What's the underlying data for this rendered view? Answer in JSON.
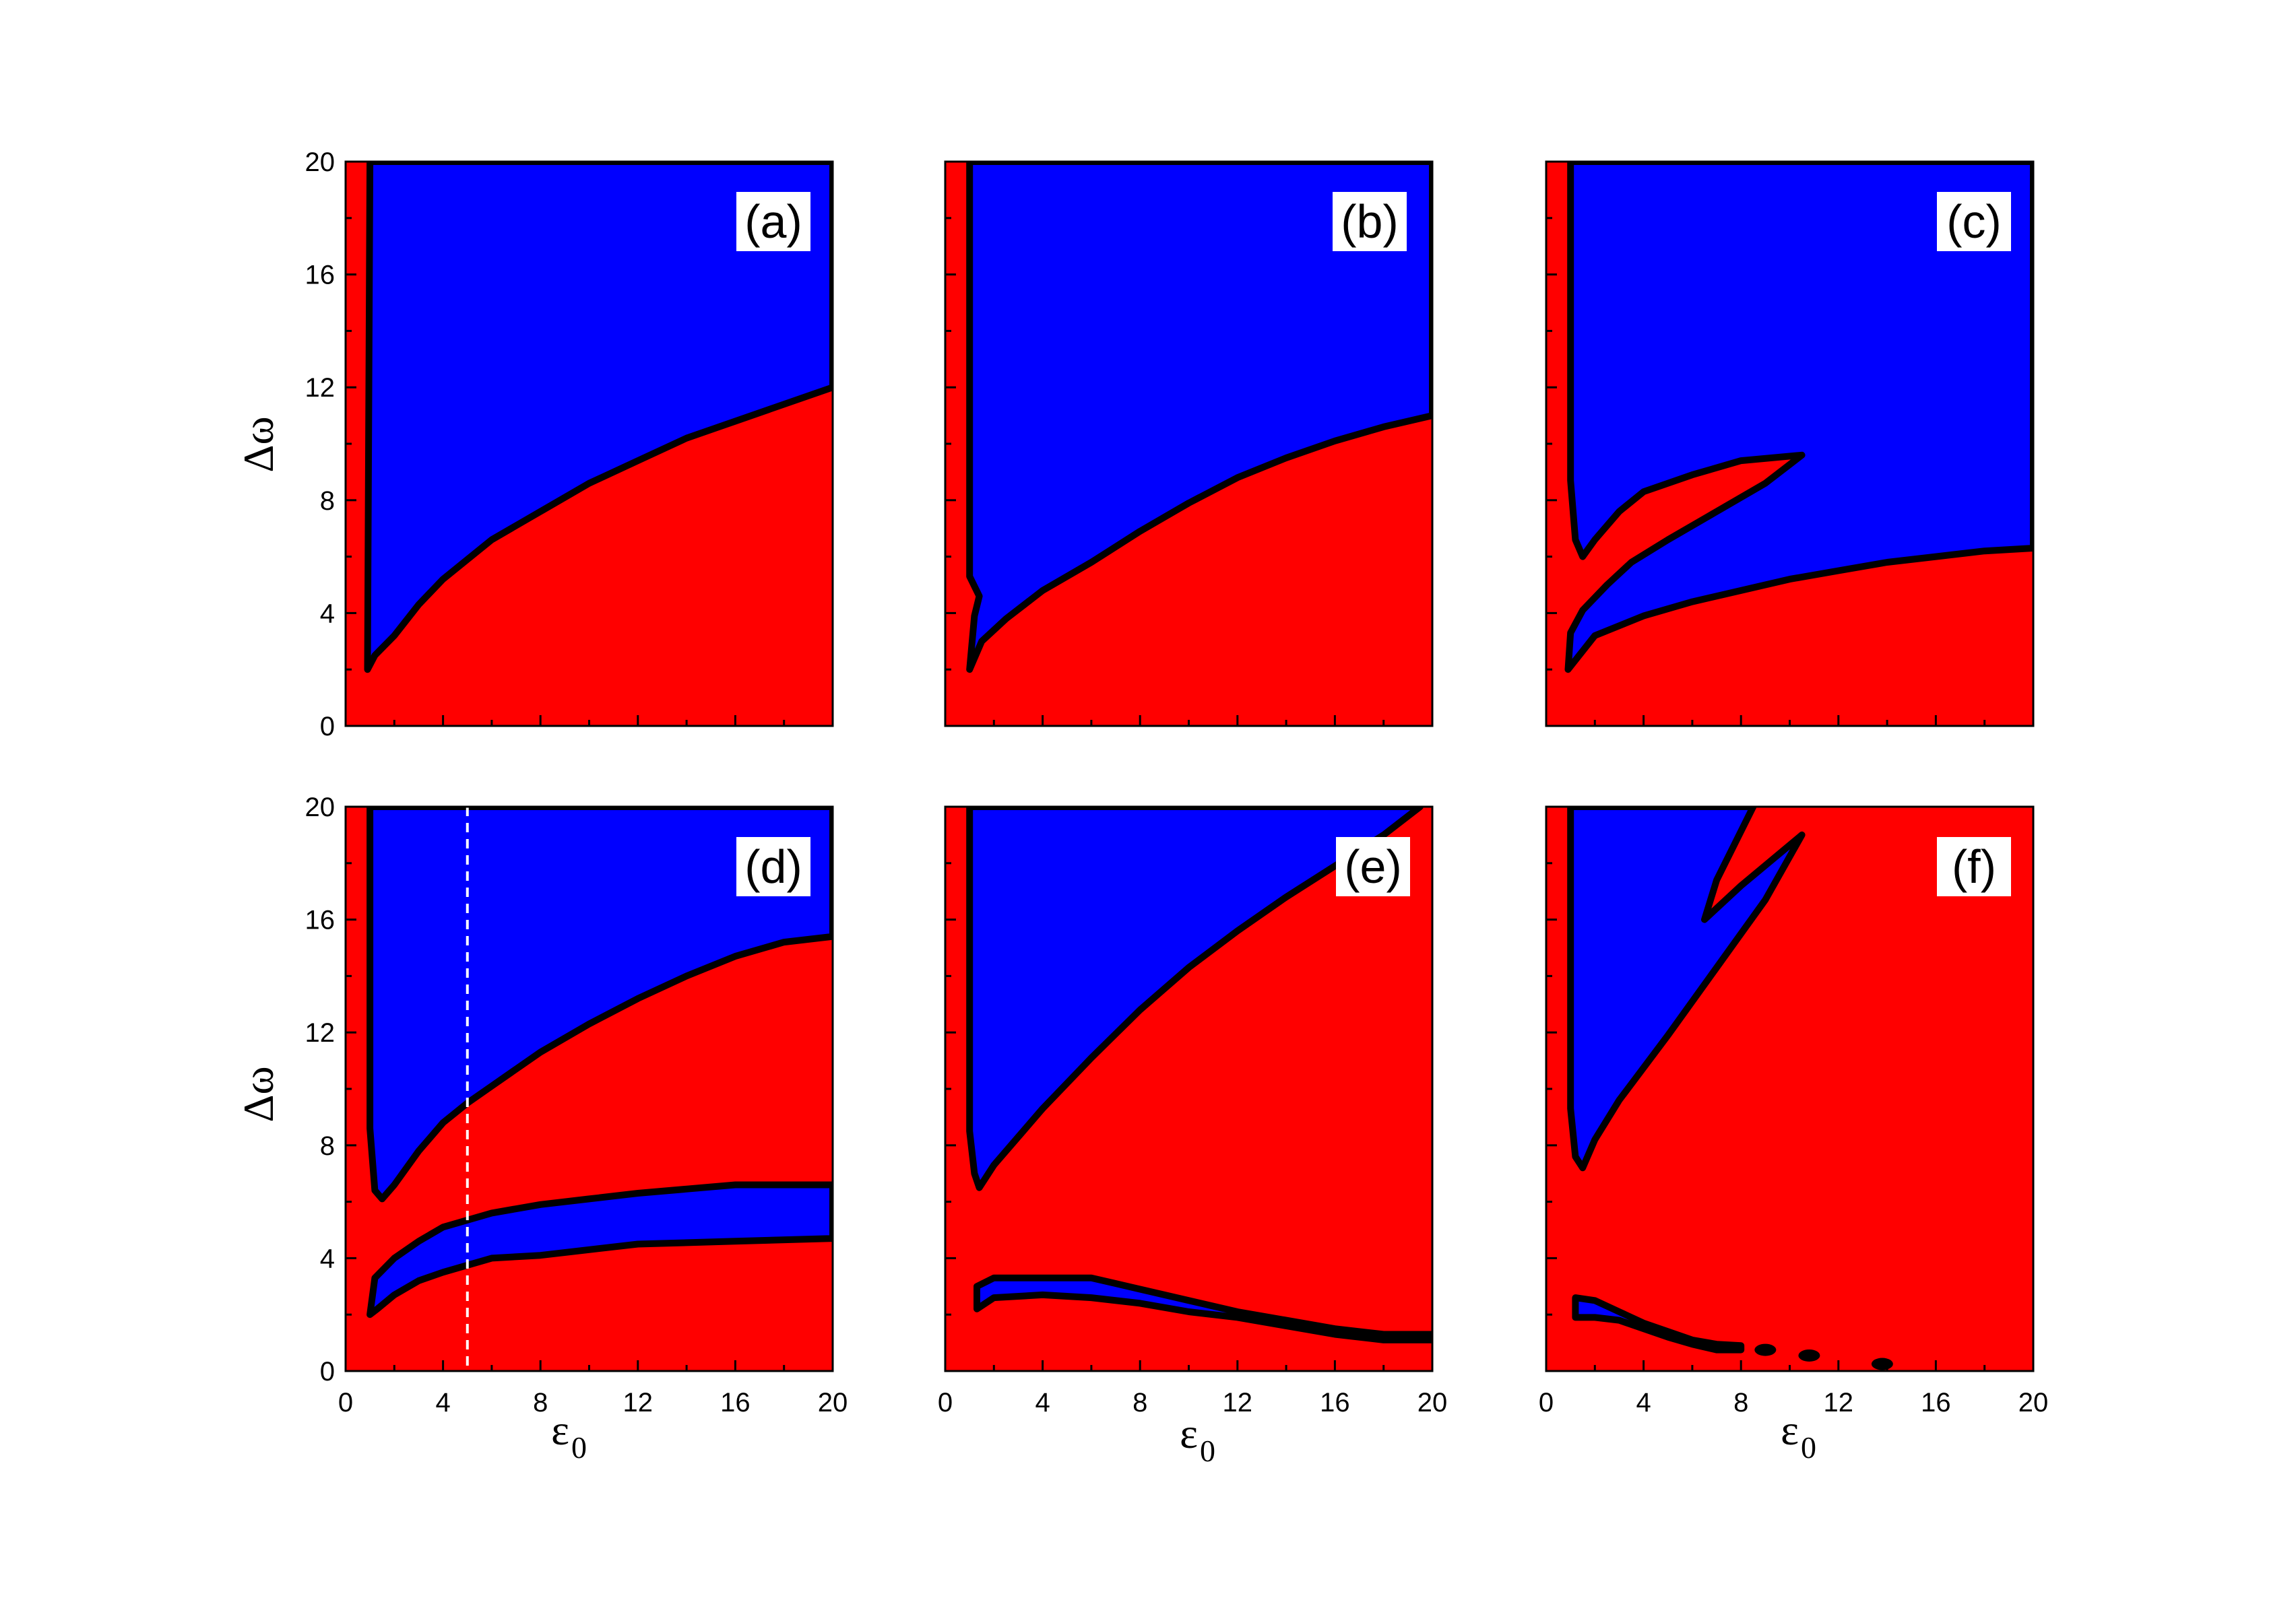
{
  "figure": {
    "colors": {
      "low_region": "#ff0000",
      "high_region": "#0000ff",
      "boundary": "#000000",
      "marker_line": "#ffffff"
    },
    "y_axis_label": "Δω",
    "x_axis_label": "ε",
    "x_axis_label_subscript": "0",
    "x_ticks": [
      "0",
      "4",
      "8",
      "12",
      "16",
      "20"
    ],
    "y_ticks": [
      "0",
      "4",
      "8",
      "12",
      "16",
      "20"
    ]
  },
  "chart_data": [
    {
      "type": "heatmap",
      "panel": "(a)",
      "xlim": [
        0,
        20
      ],
      "ylim": [
        0,
        20
      ],
      "grid": false,
      "blue_region_boundaries": [
        [
          [
            1.0,
            20
          ],
          [
            0.9,
            2.0
          ],
          [
            1.2,
            2.5
          ],
          [
            2,
            3.2
          ],
          [
            3,
            4.3
          ],
          [
            4,
            5.2
          ],
          [
            5,
            5.9
          ],
          [
            6,
            6.6
          ],
          [
            8,
            7.6
          ],
          [
            10,
            8.6
          ],
          [
            12,
            9.4
          ],
          [
            14,
            10.2
          ],
          [
            16,
            10.8
          ],
          [
            18,
            11.4
          ],
          [
            20,
            12.0
          ],
          [
            20,
            20
          ]
        ]
      ]
    },
    {
      "type": "heatmap",
      "panel": "(b)",
      "xlim": [
        0,
        20
      ],
      "ylim": [
        0,
        20
      ],
      "grid": false,
      "blue_region_boundaries": [
        [
          [
            1.0,
            20
          ],
          [
            1.0,
            5.3
          ],
          [
            1.4,
            4.6
          ],
          [
            1.2,
            3.9
          ],
          [
            1.0,
            2.0
          ],
          [
            1.5,
            3.0
          ],
          [
            2.5,
            3.8
          ],
          [
            4,
            4.8
          ],
          [
            6,
            5.8
          ],
          [
            8,
            6.9
          ],
          [
            10,
            7.9
          ],
          [
            12,
            8.8
          ],
          [
            14,
            9.5
          ],
          [
            16,
            10.1
          ],
          [
            18,
            10.6
          ],
          [
            20,
            11.0
          ],
          [
            20,
            20
          ]
        ]
      ]
    },
    {
      "type": "heatmap",
      "panel": "(c)",
      "xlim": [
        0,
        20
      ],
      "ylim": [
        0,
        20
      ],
      "grid": false,
      "blue_region_boundaries": [
        [
          [
            1.0,
            20
          ],
          [
            1.0,
            8.7
          ],
          [
            1.2,
            6.6
          ],
          [
            1.5,
            6.0
          ],
          [
            2,
            6.6
          ],
          [
            3,
            7.6
          ],
          [
            4,
            8.3
          ],
          [
            6,
            8.9
          ],
          [
            8,
            9.4
          ],
          [
            10.5,
            9.6
          ],
          [
            9,
            8.6
          ],
          [
            7,
            7.6
          ],
          [
            5,
            6.6
          ],
          [
            3.5,
            5.8
          ],
          [
            2.5,
            5.0
          ],
          [
            1.5,
            4.1
          ],
          [
            1.0,
            3.3
          ],
          [
            0.9,
            2.0
          ],
          [
            2,
            3.2
          ],
          [
            4,
            3.9
          ],
          [
            6,
            4.4
          ],
          [
            8,
            4.8
          ],
          [
            10,
            5.2
          ],
          [
            12,
            5.5
          ],
          [
            14,
            5.8
          ],
          [
            16,
            6.0
          ],
          [
            18,
            6.2
          ],
          [
            20,
            6.3
          ],
          [
            20,
            20
          ]
        ]
      ]
    },
    {
      "type": "heatmap",
      "panel": "(d)",
      "xlim": [
        0,
        20
      ],
      "ylim": [
        0,
        20
      ],
      "grid": false,
      "reference_line_x": 5,
      "blue_region_boundaries": [
        [
          [
            1.0,
            20
          ],
          [
            1.0,
            8.6
          ],
          [
            1.2,
            6.4
          ],
          [
            1.5,
            6.1
          ],
          [
            2,
            6.6
          ],
          [
            3,
            7.8
          ],
          [
            4,
            8.8
          ],
          [
            5,
            9.5
          ],
          [
            6,
            10.1
          ],
          [
            8,
            11.3
          ],
          [
            10,
            12.3
          ],
          [
            12,
            13.2
          ],
          [
            14,
            14.0
          ],
          [
            16,
            14.7
          ],
          [
            18,
            15.2
          ],
          [
            20,
            15.4
          ],
          [
            20,
            20
          ]
        ],
        [
          [
            1.0,
            2.0
          ],
          [
            1.2,
            3.3
          ],
          [
            2,
            4.0
          ],
          [
            3,
            4.6
          ],
          [
            4,
            5.1
          ],
          [
            6,
            5.6
          ],
          [
            8,
            5.9
          ],
          [
            10,
            6.1
          ],
          [
            12,
            6.3
          ],
          [
            16,
            6.6
          ],
          [
            20,
            6.6
          ],
          [
            20,
            4.7
          ],
          [
            16,
            4.6
          ],
          [
            12,
            4.5
          ],
          [
            10,
            4.3
          ],
          [
            8,
            4.1
          ],
          [
            6,
            4.0
          ],
          [
            4,
            3.5
          ],
          [
            3,
            3.2
          ],
          [
            2,
            2.7
          ],
          [
            1.3,
            2.2
          ]
        ]
      ]
    },
    {
      "type": "heatmap",
      "panel": "(e)",
      "xlim": [
        0,
        20
      ],
      "ylim": [
        0,
        20
      ],
      "grid": false,
      "blue_region_boundaries": [
        [
          [
            1.0,
            20
          ],
          [
            1.0,
            8.5
          ],
          [
            1.2,
            7.0
          ],
          [
            1.4,
            6.5
          ],
          [
            2,
            7.3
          ],
          [
            3,
            8.3
          ],
          [
            4,
            9.3
          ],
          [
            6,
            11.1
          ],
          [
            8,
            12.8
          ],
          [
            10,
            14.3
          ],
          [
            12,
            15.6
          ],
          [
            14,
            16.8
          ],
          [
            16,
            17.9
          ],
          [
            18,
            19.0
          ],
          [
            19.5,
            20
          ]
        ],
        [
          [
            1.3,
            3.0
          ],
          [
            2,
            3.3
          ],
          [
            6,
            3.3
          ],
          [
            8,
            2.9
          ],
          [
            10,
            2.5
          ],
          [
            12,
            2.1
          ],
          [
            14,
            1.8
          ],
          [
            16,
            1.5
          ],
          [
            18,
            1.3
          ],
          [
            20,
            1.3
          ],
          [
            20,
            1.1
          ],
          [
            18,
            1.1
          ],
          [
            16,
            1.3
          ],
          [
            14,
            1.6
          ],
          [
            12,
            1.9
          ],
          [
            10,
            2.1
          ],
          [
            8,
            2.4
          ],
          [
            6,
            2.6
          ],
          [
            4,
            2.7
          ],
          [
            2,
            2.6
          ],
          [
            1.3,
            2.2
          ]
        ]
      ]
    },
    {
      "type": "heatmap",
      "panel": "(f)",
      "xlim": [
        0,
        20
      ],
      "ylim": [
        0,
        20
      ],
      "grid": false,
      "blue_region_boundaries": [
        [
          [
            1.0,
            20
          ],
          [
            1.0,
            9.3
          ],
          [
            1.2,
            7.6
          ],
          [
            1.5,
            7.2
          ],
          [
            2,
            8.2
          ],
          [
            3,
            9.6
          ],
          [
            5,
            11.9
          ],
          [
            7,
            14.3
          ],
          [
            9,
            16.7
          ],
          [
            10.5,
            19.0
          ],
          [
            8,
            17.2
          ],
          [
            6.5,
            16.0
          ],
          [
            7,
            17.4
          ],
          [
            8.5,
            20
          ]
        ],
        [
          [
            1.2,
            2.6
          ],
          [
            2,
            2.5
          ],
          [
            3,
            2.1
          ],
          [
            4,
            1.7
          ],
          [
            5,
            1.4
          ],
          [
            6,
            1.1
          ],
          [
            7,
            0.95
          ],
          [
            8,
            0.9
          ],
          [
            8,
            0.75
          ],
          [
            7,
            0.75
          ],
          [
            6,
            0.95
          ],
          [
            5,
            1.2
          ],
          [
            4,
            1.5
          ],
          [
            3,
            1.8
          ],
          [
            2,
            1.9
          ],
          [
            1.2,
            1.9
          ]
        ]
      ],
      "boundary_islands": [
        [
          9,
          0.75
        ],
        [
          10.8,
          0.55
        ],
        [
          13.8,
          0.25
        ]
      ]
    }
  ]
}
